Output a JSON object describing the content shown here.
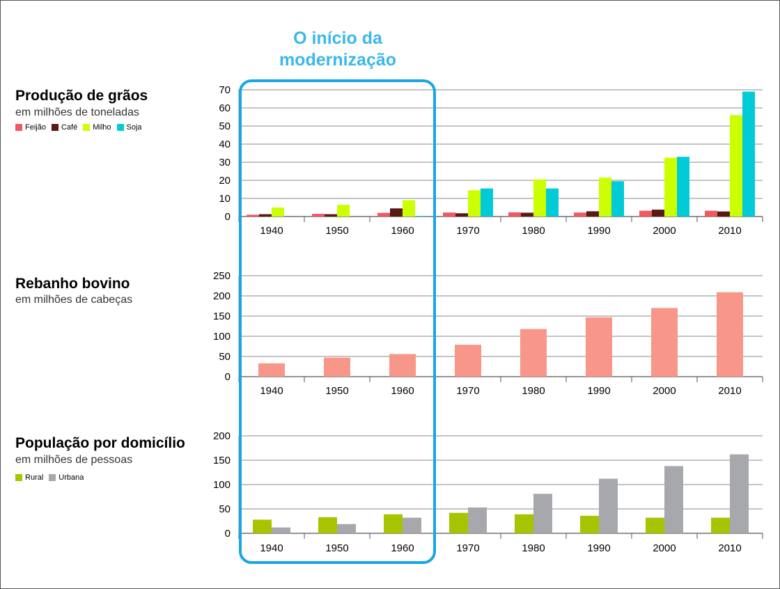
{
  "headline": "O início da modernização",
  "colors": {
    "feijao": "#f0595f",
    "cafe": "#5a1a14",
    "milho": "#ccff00",
    "soja": "#00cbd6",
    "rebanho": "#f8968a",
    "rural": "#a8c400",
    "urbana": "#a7a8ab",
    "highlight": "#1aa6e6",
    "grid": "#888888"
  },
  "panels": [
    {
      "title": "Produção de grãos",
      "subtitle": "em milhões de toneladas"
    },
    {
      "title": "Rebanho bovino",
      "subtitle": "em milhões de cabeças"
    },
    {
      "title": "População por domicílio",
      "subtitle": "em milhões de pessoas"
    }
  ],
  "chart_data": [
    {
      "type": "bar",
      "title": "Produção de grãos",
      "subtitle": "em milhões de toneladas",
      "categories": [
        "1940",
        "1950",
        "1960",
        "1970",
        "1980",
        "1990",
        "2000",
        "2010"
      ],
      "ylim": [
        0,
        70
      ],
      "yticks": [
        0,
        10,
        20,
        30,
        40,
        50,
        60,
        70
      ],
      "grid": true,
      "legend": "top-left",
      "series": [
        {
          "name": "Feijão",
          "color": "#f0595f",
          "values": [
            1,
            1.5,
            2,
            2.2,
            2.3,
            2.2,
            3.2,
            3.2
          ]
        },
        {
          "name": "Café",
          "color": "#5a1a14",
          "values": [
            1.3,
            1.3,
            4.5,
            1.8,
            2.1,
            2.9,
            3.8,
            2.8
          ]
        },
        {
          "name": "Milho",
          "color": "#ccff00",
          "values": [
            5,
            6.5,
            9,
            14.5,
            20.5,
            21.5,
            32.5,
            56
          ]
        },
        {
          "name": "Soja",
          "color": "#00cbd6",
          "values": [
            0,
            0,
            0.3,
            15.5,
            15.5,
            19.5,
            33,
            69
          ]
        }
      ]
    },
    {
      "type": "bar",
      "title": "Rebanho bovino",
      "subtitle": "em milhões de cabeças",
      "categories": [
        "1940",
        "1950",
        "1960",
        "1970",
        "1980",
        "1990",
        "2000",
        "2010"
      ],
      "ylim": [
        0,
        250
      ],
      "yticks": [
        0,
        50,
        100,
        150,
        200,
        250
      ],
      "grid": true,
      "series": [
        {
          "name": "",
          "color": "#f8968a",
          "values": [
            33,
            47,
            56,
            79,
            118,
            147,
            170,
            209
          ]
        }
      ]
    },
    {
      "type": "bar",
      "title": "População por domicílio",
      "subtitle": "em milhões de pessoas",
      "categories": [
        "1940",
        "1950",
        "1960",
        "1970",
        "1980",
        "1990",
        "2000",
        "2010"
      ],
      "ylim": [
        0,
        200
      ],
      "yticks": [
        0,
        50,
        100,
        150,
        200
      ],
      "grid": true,
      "legend": "top-left",
      "series": [
        {
          "name": "Rural",
          "color": "#a8c400",
          "values": [
            28,
            33,
            39,
            42,
            39,
            36,
            32,
            32
          ]
        },
        {
          "name": "Urbana",
          "color": "#a7a8ab",
          "values": [
            12,
            19,
            32,
            53,
            81,
            112,
            138,
            162
          ]
        }
      ]
    }
  ]
}
